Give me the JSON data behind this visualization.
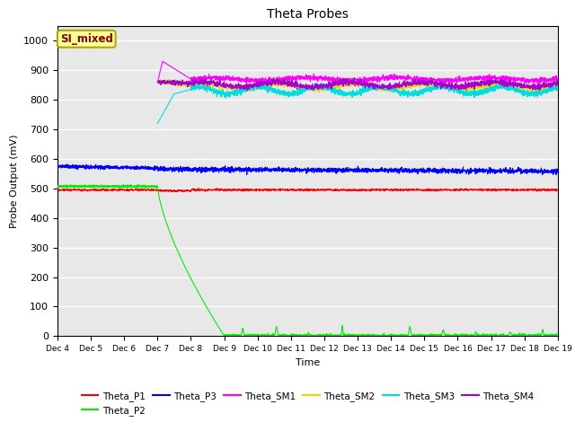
{
  "title": "Theta Probes",
  "xlabel": "Time",
  "ylabel": "Probe Output (mV)",
  "ylim": [
    0,
    1050
  ],
  "xlim": [
    0,
    15
  ],
  "x_tick_labels": [
    "Dec 4",
    "Dec 5",
    "Dec 6",
    "Dec 7",
    "Dec 8",
    "Dec 9",
    "Dec 10",
    "Dec 11",
    "Dec 12",
    "Dec 13",
    "Dec 14",
    "Dec 15",
    "Dec 16",
    "Dec 17",
    "Dec 18",
    "Dec 19"
  ],
  "annotation_text": "SI_mixed",
  "annotation_color": "#8B0000",
  "annotation_bg": "#FFFF99",
  "annotation_border": "#AAAA00",
  "bg_color": "#E8E8E8",
  "series_order": [
    "Theta_P1",
    "Theta_P2",
    "Theta_P3",
    "Theta_SM1",
    "Theta_SM2",
    "Theta_SM3",
    "Theta_SM4"
  ],
  "series": {
    "Theta_P1": {
      "color": "#FF0000",
      "lw": 0.8
    },
    "Theta_P2": {
      "color": "#00EE00",
      "lw": 0.8
    },
    "Theta_P3": {
      "color": "#0000FF",
      "lw": 0.8
    },
    "Theta_SM1": {
      "color": "#FF00FF",
      "lw": 0.8
    },
    "Theta_SM2": {
      "color": "#DDDD00",
      "lw": 0.8
    },
    "Theta_SM3": {
      "color": "#00DDDD",
      "lw": 0.8
    },
    "Theta_SM4": {
      "color": "#AA00CC",
      "lw": 0.8
    }
  },
  "legend_row1": [
    "Theta_P1",
    "Theta_P2",
    "Theta_P3",
    "Theta_SM1",
    "Theta_SM2",
    "Theta_SM3"
  ],
  "legend_row2": [
    "Theta_SM4"
  ],
  "title_fontsize": 10,
  "figsize": [
    6.4,
    4.8
  ],
  "dpi": 100
}
